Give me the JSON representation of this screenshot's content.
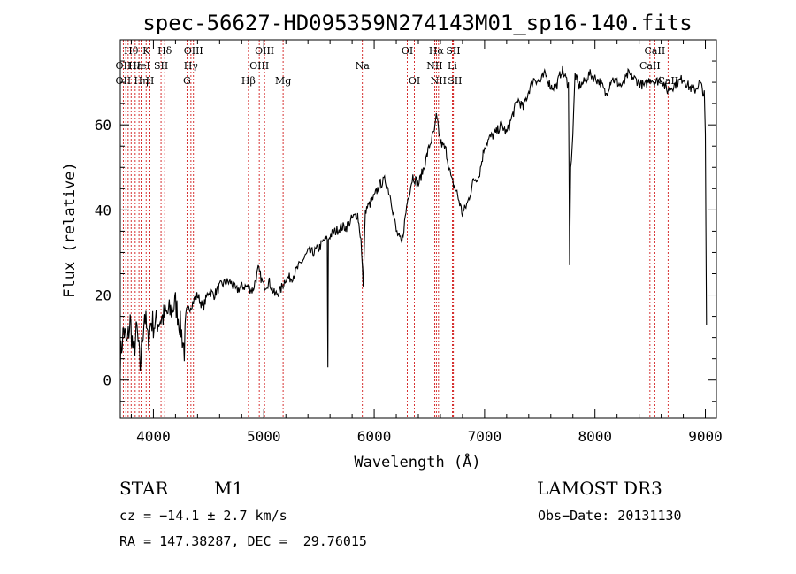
{
  "chart_data": {
    "type": "line",
    "title": "spec-56627-HD095359N274143M01_sp16-140.fits",
    "xlabel": "Wavelength (Å)",
    "ylabel": "Flux (relative)",
    "xlim": [
      3700,
      9100
    ],
    "ylim": [
      -9,
      80
    ],
    "xticks": [
      4000,
      5000,
      6000,
      7000,
      8000,
      9000
    ],
    "yticks": [
      0,
      20,
      40,
      60
    ],
    "grid": false,
    "series": [
      {
        "name": "spectrum",
        "x": [
          3700,
          3730,
          3760,
          3790,
          3820,
          3850,
          3880,
          3900,
          3920,
          3950,
          3980,
          4000,
          4050,
          4100,
          4150,
          4200,
          4250,
          4280,
          4300,
          4350,
          4400,
          4450,
          4500,
          4550,
          4600,
          4650,
          4700,
          4750,
          4800,
          4850,
          4900,
          4950,
          5000,
          5050,
          5100,
          5150,
          5200,
          5250,
          5300,
          5350,
          5400,
          5450,
          5500,
          5550,
          5575,
          5580,
          5585,
          5600,
          5650,
          5700,
          5750,
          5800,
          5850,
          5880,
          5900,
          5920,
          5950,
          6000,
          6050,
          6100,
          6150,
          6200,
          6250,
          6300,
          6350,
          6400,
          6450,
          6500,
          6550,
          6563,
          6600,
          6650,
          6700,
          6750,
          6800,
          6850,
          6900,
          6950,
          7000,
          7050,
          7100,
          7150,
          7200,
          7250,
          7300,
          7350,
          7400,
          7450,
          7500,
          7550,
          7600,
          7650,
          7700,
          7750,
          7760,
          7770,
          7780,
          7800,
          7820,
          7850,
          7900,
          7950,
          8000,
          8050,
          8100,
          8150,
          8200,
          8250,
          8300,
          8350,
          8400,
          8450,
          8500,
          8550,
          8600,
          8650,
          8700,
          8750,
          8800,
          8850,
          8900,
          8950,
          8990,
          9000,
          9010
        ],
        "values": [
          5,
          12,
          8,
          14,
          6,
          12,
          3,
          10,
          16,
          9,
          14,
          13,
          14,
          15,
          16,
          18,
          12,
          7,
          16,
          18,
          20,
          17,
          21,
          20,
          22,
          23,
          23,
          21,
          22,
          22,
          21,
          26,
          22,
          23,
          20,
          21,
          24,
          24,
          26,
          28,
          30,
          30,
          31,
          33,
          33,
          3,
          33,
          34,
          35,
          36,
          36,
          38,
          39,
          33,
          22,
          40,
          41,
          43,
          46,
          47,
          43,
          35,
          32,
          42,
          48,
          46,
          50,
          55,
          59,
          62,
          56,
          54,
          47,
          44,
          39,
          42,
          47,
          48,
          55,
          57,
          58,
          60,
          58,
          62,
          66,
          64,
          68,
          71,
          70,
          72,
          69,
          69,
          73,
          70,
          70,
          27,
          50,
          58,
          72,
          69,
          70,
          72,
          71,
          70,
          67,
          71,
          70,
          69,
          72,
          71,
          70,
          69,
          71,
          70,
          71,
          68,
          69,
          70,
          71,
          69,
          68,
          70,
          67,
          58,
          13
        ]
      }
    ],
    "line_markers": [
      {
        "label": "Hθ",
        "row": 1,
        "wl": 3798
      },
      {
        "label": "OII",
        "row": 2,
        "wl": 3727
      },
      {
        "label": "OII",
        "row": 3,
        "wl": 3727
      },
      {
        "label": "Hε",
        "row": 2,
        "wl": 3835
      },
      {
        "label": "Hη",
        "row": 3,
        "wl": 3889
      },
      {
        "label": "K",
        "row": 1,
        "wl": 3934
      },
      {
        "label": "H",
        "row": 3,
        "wl": 3969
      },
      {
        "label": "HeI",
        "row": 2,
        "wl": 3889
      },
      {
        "label": "SII",
        "row": 2,
        "wl": 4069
      },
      {
        "label": "Hδ",
        "row": 1,
        "wl": 4102
      },
      {
        "label": "OIII",
        "row": 1,
        "wl": 4363
      },
      {
        "label": "Hγ",
        "row": 2,
        "wl": 4340
      },
      {
        "label": "G",
        "row": 3,
        "wl": 4304
      },
      {
        "label": "Hβ",
        "row": 3,
        "wl": 4861
      },
      {
        "label": "OIII",
        "row": 1,
        "wl": 5007
      },
      {
        "label": "OIII",
        "row": 2,
        "wl": 4959
      },
      {
        "label": "Mg",
        "row": 3,
        "wl": 5175
      },
      {
        "label": "Na",
        "row": 2,
        "wl": 5893
      },
      {
        "label": "OI",
        "row": 1,
        "wl": 6300
      },
      {
        "label": "OI",
        "row": 3,
        "wl": 6364
      },
      {
        "label": "Hα",
        "row": 1,
        "wl": 6563
      },
      {
        "label": "SII",
        "row": 1,
        "wl": 6716
      },
      {
        "label": "NII",
        "row": 2,
        "wl": 6548
      },
      {
        "label": "Li",
        "row": 2,
        "wl": 6708
      },
      {
        "label": "NII",
        "row": 3,
        "wl": 6583
      },
      {
        "label": "SII",
        "row": 3,
        "wl": 6731
      },
      {
        "label": "CaII",
        "row": 1,
        "wl": 8542
      },
      {
        "label": "CaII",
        "row": 2,
        "wl": 8498
      },
      {
        "label": "CaII",
        "row": 3,
        "wl": 8662
      }
    ],
    "marker_lines_wl": [
      3727,
      3750,
      3771,
      3798,
      3835,
      3869,
      3889,
      3934,
      3969,
      4069,
      4102,
      4304,
      4340,
      4363,
      4861,
      4959,
      5007,
      5175,
      5893,
      6300,
      6364,
      6548,
      6563,
      6583,
      6708,
      6716,
      6731,
      8498,
      8542,
      8662
    ],
    "colors": {
      "spectrum": "#000000",
      "marker": "#cc0000",
      "axes": "#000000"
    }
  },
  "info": {
    "class": "STAR",
    "subclass": "M1",
    "survey": "LAMOST DR3",
    "cz": "cz = −14.1 ± 2.7 km/s",
    "obs_date": "Obs−Date: 20131130",
    "coords": "RA = 147.38287, DEC =  29.76015"
  }
}
